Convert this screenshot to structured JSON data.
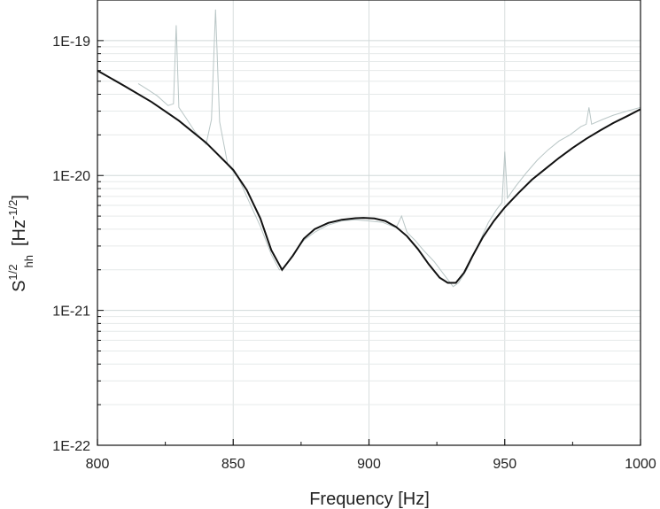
{
  "chart_data": {
    "type": "line",
    "xlabel": "Frequency  [Hz]",
    "ylabel": {
      "base": "S",
      "sup": "1/2",
      "sub": "hh",
      "unit_open": "[Hz",
      "unit_sup": "-1/2",
      "unit_close": "]"
    },
    "xlim": [
      800,
      1000
    ],
    "ylim": [
      1e-22,
      2e-19
    ],
    "yscale": "log",
    "grid": true,
    "x_ticks": [
      "800",
      "850",
      "900",
      "950",
      "1000"
    ],
    "y_ticks": [
      "1E-22",
      "1E-21",
      "1E-20",
      "1E-19"
    ],
    "series": [
      {
        "kind": "measured",
        "x": [
          815,
          818,
          822,
          826,
          828,
          829,
          830,
          833,
          836,
          840,
          842,
          843.5,
          845,
          848,
          852,
          856,
          860,
          864,
          867,
          869,
          872,
          876,
          880,
          885,
          890,
          895,
          900,
          905,
          910,
          912,
          914,
          917,
          920,
          924,
          928,
          931,
          933,
          936,
          940,
          944,
          947,
          949,
          950,
          951,
          954,
          958,
          962,
          966,
          970,
          974,
          978,
          980,
          981,
          982,
          986,
          990,
          995,
          1000
        ],
        "y": [
          4.8e-20,
          4.4e-20,
          3.9e-20,
          3.3e-20,
          3.4e-20,
          1.3e-19,
          3.2e-20,
          2.6e-20,
          2.1e-20,
          1.7e-20,
          2.6e-20,
          1.7e-19,
          2.5e-20,
          1.2e-20,
          9.5e-21,
          6.3e-21,
          4.2e-21,
          2.6e-21,
          2e-21,
          2.1e-21,
          2.6e-21,
          3.3e-21,
          3.8e-21,
          4.3e-21,
          4.6e-21,
          4.7e-21,
          4.6e-21,
          4.5e-21,
          4.1e-21,
          5e-21,
          3.8e-21,
          3.3e-21,
          2.8e-21,
          2.3e-21,
          1.8e-21,
          1.5e-21,
          1.6e-21,
          2e-21,
          3e-21,
          4.5e-21,
          5.6e-21,
          6.3e-21,
          1.5e-20,
          6.8e-21,
          8.3e-21,
          1.05e-20,
          1.3e-20,
          1.55e-20,
          1.8e-20,
          2e-20,
          2.3e-20,
          2.4e-20,
          3.2e-20,
          2.4e-20,
          2.6e-20,
          2.8e-20,
          3e-20,
          3.2e-20
        ],
        "color": "#b9c6c6"
      },
      {
        "kind": "fit",
        "x": [
          800,
          810,
          820,
          830,
          840,
          850,
          855,
          860,
          864,
          868,
          872,
          876,
          880,
          885,
          890,
          895,
          898,
          902,
          906,
          910,
          914,
          918,
          922,
          926,
          929,
          932,
          935,
          938,
          942,
          946,
          950,
          955,
          960,
          965,
          970,
          975,
          980,
          985,
          990,
          995,
          1000
        ],
        "y": [
          6e-20,
          4.6e-20,
          3.5e-20,
          2.55e-20,
          1.75e-20,
          1.1e-20,
          7.8e-21,
          4.8e-21,
          2.8e-21,
          2e-21,
          2.55e-21,
          3.4e-21,
          4e-21,
          4.45e-21,
          4.7e-21,
          4.82e-21,
          4.85e-21,
          4.8e-21,
          4.6e-21,
          4.15e-21,
          3.55e-21,
          2.85e-21,
          2.2e-21,
          1.75e-21,
          1.6e-21,
          1.6e-21,
          1.9e-21,
          2.5e-21,
          3.5e-21,
          4.6e-21,
          5.8e-21,
          7.4e-21,
          9.3e-21,
          1.12e-20,
          1.35e-20,
          1.6e-20,
          1.87e-20,
          2.15e-20,
          2.45e-20,
          2.75e-20,
          3.1e-20
        ],
        "color": "#111111"
      }
    ]
  }
}
